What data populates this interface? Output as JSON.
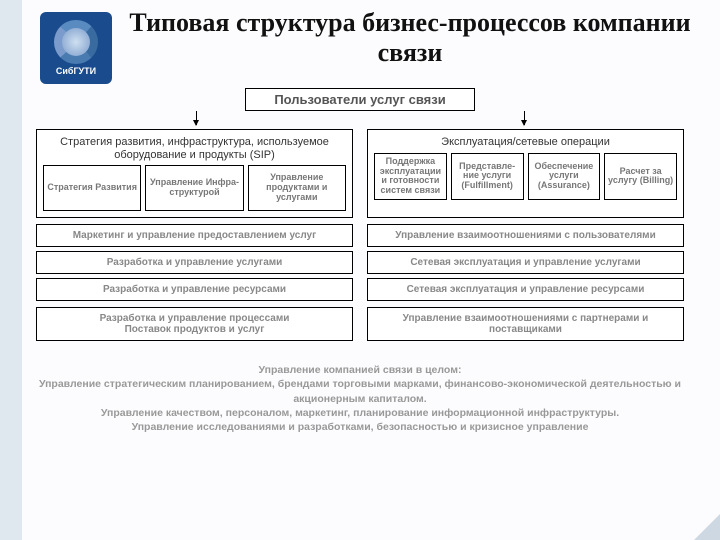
{
  "logo_label": "СибГУТИ",
  "title": "Типовая структура бизнес-процессов компании связи",
  "top_box": "Пользователи услуг связи",
  "left_head": "Стратегия развития, инфраструктура, используемое оборудование и продукты (SIP)",
  "right_head": "Эксплуатация/сетевые операции",
  "left_subs": [
    "Стратегия Развития",
    "Управление Инфра-структурой",
    "Управление продуктами и услугами"
  ],
  "right_subs": [
    "Поддержка эксплуатации и готовности систем связи",
    "Представле-ние услуги (Fulfillment)",
    "Обеспечение услуги (Assurance)",
    "Расчет за услугу (Billing)"
  ],
  "pair_rows": [
    [
      "Маркетинг и управление предоставлением услуг",
      "Управление взаимоотношениями с пользователями"
    ],
    [
      "Разработка и управление услугами",
      "Сетевая эксплуатация и управление услугами"
    ],
    [
      "Разработка и управление ресурсами",
      "Сетевая эксплуатация и управление ресурсами"
    ]
  ],
  "full_rows": [
    "Разработка и управление процессами\nПоставок продуктов и услуг",
    "Управление взаимоотношениями с партнерами и поставщиками"
  ],
  "bottom": [
    "Управление компанией связи в целом:",
    "Управление стратегическим планированием, брендами торговыми марками, финансово-экономической деятельностью и акционерным капиталом.",
    "Управление качеством, персоналом, маркетинг, планирование информационной инфраструктуры.",
    "Управление исследованиями и разработками, безопасностью и кризисное управление"
  ],
  "colors": {
    "bg": "#fcfcfe",
    "stripe": "#dfe8ee",
    "logo_bg": "#1a4b8c",
    "border": "#000000",
    "faded_text": "#888888"
  }
}
